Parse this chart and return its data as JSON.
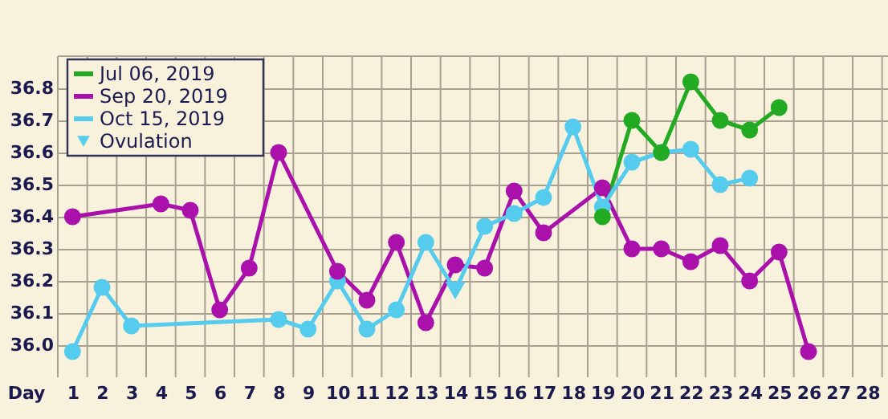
{
  "chart_data": {
    "type": "line",
    "xlabel": "Day",
    "xlim": [
      0.5,
      28.7
    ],
    "xticks": [
      1,
      2,
      3,
      4,
      5,
      6,
      7,
      8,
      9,
      10,
      11,
      12,
      13,
      14,
      15,
      16,
      17,
      18,
      19,
      20,
      21,
      22,
      23,
      24,
      25,
      26,
      27,
      28
    ],
    "ylim": [
      35.9,
      36.9
    ],
    "yticks": [
      {
        "value": 36.0,
        "label": "36.0"
      },
      36.1,
      36.2,
      36.3,
      36.4,
      36.5,
      36.6,
      36.7,
      36.8
    ],
    "grid": true,
    "legend": "top left",
    "marker": "circle",
    "line_style": "solid",
    "series": [
      {
        "name": "Jul 06, 2019",
        "color": "#22aa22",
        "x": [
          19,
          20,
          21,
          22,
          23,
          24,
          25
        ],
        "values": [
          36.4,
          36.7,
          36.6,
          36.82,
          36.7,
          36.67,
          36.74
        ]
      },
      {
        "name": "Sep 20, 2019",
        "color": "#aa11aa",
        "x": [
          1,
          4,
          5,
          6,
          7,
          8,
          10,
          11,
          12,
          13,
          14,
          15,
          16,
          17,
          19,
          20,
          21,
          22,
          23,
          24,
          25,
          26
        ],
        "values": [
          36.4,
          36.44,
          36.42,
          36.11,
          36.24,
          36.6,
          36.23,
          36.14,
          36.32,
          36.07,
          36.25,
          36.24,
          36.48,
          36.35,
          36.49,
          36.3,
          36.3,
          36.26,
          36.31,
          36.2,
          36.29,
          35.98
        ]
      },
      {
        "name": "Oct 15, 2019",
        "color": "#55ccee",
        "x": [
          1,
          2,
          3,
          8,
          9,
          10,
          11,
          12,
          13,
          14,
          15,
          16,
          17,
          18,
          19,
          20,
          21,
          22,
          23,
          24
        ],
        "values": [
          35.98,
          36.18,
          36.06,
          36.08,
          36.05,
          36.2,
          36.05,
          36.11,
          36.32,
          36.17,
          36.37,
          36.41,
          36.46,
          36.68,
          36.43,
          36.57,
          36.6,
          36.61,
          36.5,
          36.52
        ]
      },
      {
        "name": "Ovulation",
        "type": "scatter",
        "marker": "triangle",
        "color": "#55ccee",
        "x": [
          14
        ],
        "values": [
          36.17
        ]
      }
    ]
  }
}
